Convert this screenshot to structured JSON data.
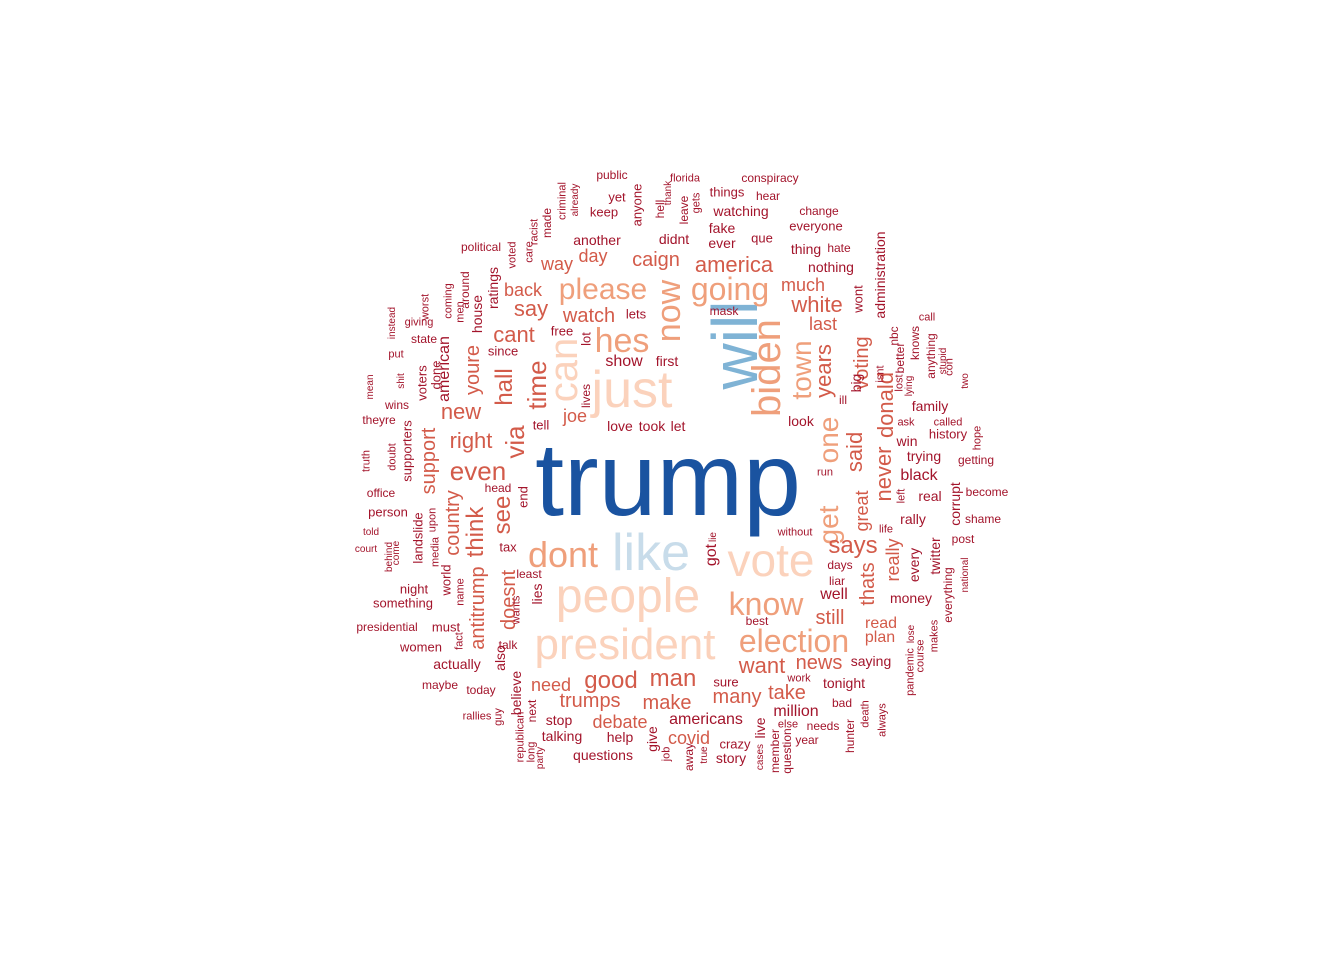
{
  "palette": {
    "tier1": "#1a53a0",
    "tier2": "#7fb3d5",
    "tier3": "#c8dcea",
    "tier4": "#fbd2bc",
    "tier5": "#ef9f7b",
    "tier6": "#d35b4a",
    "tier7": "#a3142b"
  },
  "words": [
    {
      "text": "trump",
      "tier": 1,
      "rot": 0
    },
    {
      "text": "will",
      "tier": 2,
      "rot": 1
    },
    {
      "text": "like",
      "tier": 3,
      "rot": 0
    },
    {
      "text": "people",
      "tier": 4,
      "rot": 0
    },
    {
      "text": "president",
      "tier": 4,
      "rot": 0
    },
    {
      "text": "just",
      "tier": 4,
      "rot": 0
    },
    {
      "text": "vote",
      "tier": 4,
      "rot": 0
    },
    {
      "text": "can",
      "tier": 4,
      "rot": 1
    },
    {
      "text": "biden",
      "tier": 5,
      "rot": 1
    },
    {
      "text": "now",
      "tier": 5,
      "rot": 1
    },
    {
      "text": "hes",
      "tier": 5,
      "rot": 0
    },
    {
      "text": "dont",
      "tier": 5,
      "rot": 0
    },
    {
      "text": "election",
      "tier": 5,
      "rot": 0
    },
    {
      "text": "know",
      "tier": 5,
      "rot": 0
    },
    {
      "text": "going",
      "tier": 5,
      "rot": 0
    },
    {
      "text": "please",
      "tier": 5,
      "rot": 0
    },
    {
      "text": "get",
      "tier": 5,
      "rot": 1
    },
    {
      "text": "one",
      "tier": 5,
      "rot": 1
    },
    {
      "text": "town",
      "tier": 5,
      "rot": 1
    },
    {
      "text": "time",
      "tier": 6,
      "rot": 1
    },
    {
      "text": "via",
      "tier": 6,
      "rot": 1
    },
    {
      "text": "hall",
      "tier": 6,
      "rot": 1
    },
    {
      "text": "see",
      "tier": 6,
      "rot": 1
    },
    {
      "text": "even",
      "tier": 6,
      "rot": 0
    },
    {
      "text": "think",
      "tier": 6,
      "rot": 1
    },
    {
      "text": "says",
      "tier": 6,
      "rot": 0
    },
    {
      "text": "good",
      "tier": 6,
      "rot": 0
    },
    {
      "text": "man",
      "tier": 6,
      "rot": 0
    },
    {
      "text": "want",
      "tier": 6,
      "rot": 0
    },
    {
      "text": "america",
      "tier": 6,
      "rot": 0
    },
    {
      "text": "white",
      "tier": 6,
      "rot": 0
    },
    {
      "text": "years",
      "tier": 6,
      "rot": 1
    },
    {
      "text": "said",
      "tier": 6,
      "rot": 1
    },
    {
      "text": "never",
      "tier": 6,
      "rot": 1
    },
    {
      "text": "donald",
      "tier": 6,
      "rot": 1
    },
    {
      "text": "right",
      "tier": 6,
      "rot": 0
    },
    {
      "text": "new",
      "tier": 6,
      "rot": 0
    },
    {
      "text": "youre",
      "tier": 6,
      "rot": 1
    },
    {
      "text": "say",
      "tier": 6,
      "rot": 0
    },
    {
      "text": "cant",
      "tier": 6,
      "rot": 0
    },
    {
      "text": "watch",
      "tier": 6,
      "rot": 0
    },
    {
      "text": "caign",
      "tier": 6,
      "rot": 0
    },
    {
      "text": "still",
      "tier": 6,
      "rot": 0
    },
    {
      "text": "news",
      "tier": 6,
      "rot": 0
    },
    {
      "text": "make",
      "tier": 6,
      "rot": 0
    },
    {
      "text": "trumps",
      "tier": 6,
      "rot": 0
    },
    {
      "text": "debate",
      "tier": 6,
      "rot": 0
    },
    {
      "text": "covid",
      "tier": 6,
      "rot": 0
    },
    {
      "text": "take",
      "tier": 6,
      "rot": 0
    },
    {
      "text": "many",
      "tier": 6,
      "rot": 0
    },
    {
      "text": "doesnt",
      "tier": 6,
      "rot": 1
    },
    {
      "text": "antitrump",
      "tier": 6,
      "rot": 1
    },
    {
      "text": "country",
      "tier": 6,
      "rot": 1
    },
    {
      "text": "support",
      "tier": 6,
      "rot": 1
    },
    {
      "text": "thats",
      "tier": 6,
      "rot": 1
    },
    {
      "text": "great",
      "tier": 6,
      "rot": 1
    },
    {
      "text": "really",
      "tier": 6,
      "rot": 1
    },
    {
      "text": "voting",
      "tier": 6,
      "rot": 1
    },
    {
      "text": "need",
      "tier": 6,
      "rot": 0
    },
    {
      "text": "back",
      "tier": 6,
      "rot": 0
    },
    {
      "text": "way",
      "tier": 6,
      "rot": 0
    },
    {
      "text": "day",
      "tier": 6,
      "rot": 0
    },
    {
      "text": "last",
      "tier": 6,
      "rot": 0
    },
    {
      "text": "much",
      "tier": 6,
      "rot": 0
    },
    {
      "text": "joe",
      "tier": 6,
      "rot": 0
    },
    {
      "text": "plan",
      "tier": 6,
      "rot": 0
    },
    {
      "text": "read",
      "tier": 6,
      "rot": 0
    },
    {
      "text": "well",
      "tier": 7,
      "rot": 0
    },
    {
      "text": "american",
      "tier": 7,
      "rot": 1
    },
    {
      "text": "ratings",
      "tier": 7,
      "rot": 1
    },
    {
      "text": "house",
      "tier": 7,
      "rot": 1
    },
    {
      "text": "since",
      "tier": 7,
      "rot": 0
    },
    {
      "text": "free",
      "tier": 7,
      "rot": 0
    },
    {
      "text": "lot",
      "tier": 7,
      "rot": 1
    },
    {
      "text": "show",
      "tier": 7,
      "rot": 0
    },
    {
      "text": "first",
      "tier": 7,
      "rot": 0
    },
    {
      "text": "mask",
      "tier": 7,
      "rot": 0
    },
    {
      "text": "lets",
      "tier": 7,
      "rot": 0
    },
    {
      "text": "tell",
      "tier": 7,
      "rot": 0
    },
    {
      "text": "lives",
      "tier": 7,
      "rot": 1
    },
    {
      "text": "love",
      "tier": 7,
      "rot": 0
    },
    {
      "text": "took",
      "tier": 7,
      "rot": 0
    },
    {
      "text": "let",
      "tier": 7,
      "rot": 0
    },
    {
      "text": "look",
      "tier": 7,
      "rot": 0
    },
    {
      "text": "ill",
      "tier": 7,
      "rot": 0
    },
    {
      "text": "big",
      "tier": 7,
      "rot": 1
    },
    {
      "text": "end",
      "tier": 7,
      "rot": 1
    },
    {
      "text": "head",
      "tier": 7,
      "rot": 0
    },
    {
      "text": "tax",
      "tier": 7,
      "rot": 0
    },
    {
      "text": "least",
      "tier": 7,
      "rot": 0
    },
    {
      "text": "lies",
      "tier": 7,
      "rot": 1
    },
    {
      "text": "wants",
      "tier": 7,
      "rot": 1
    },
    {
      "text": "talk",
      "tier": 7,
      "rot": 0
    },
    {
      "text": "also",
      "tier": 7,
      "rot": 1
    },
    {
      "text": "believe",
      "tier": 7,
      "rot": 1
    },
    {
      "text": "next",
      "tier": 7,
      "rot": 1
    },
    {
      "text": "republican",
      "tier": 7,
      "rot": 1
    },
    {
      "text": "long",
      "tier": 7,
      "rot": 1
    },
    {
      "text": "party",
      "tier": 7,
      "rot": 1
    },
    {
      "text": "guy",
      "tier": 7,
      "rot": 1
    },
    {
      "text": "stop",
      "tier": 7,
      "rot": 0
    },
    {
      "text": "talking",
      "tier": 7,
      "rot": 0
    },
    {
      "text": "questions",
      "tier": 7,
      "rot": 0
    },
    {
      "text": "help",
      "tier": 7,
      "rot": 0
    },
    {
      "text": "give",
      "tier": 7,
      "rot": 1
    },
    {
      "text": "job",
      "tier": 7,
      "rot": 1
    },
    {
      "text": "away",
      "tier": 7,
      "rot": 1
    },
    {
      "text": "true",
      "tier": 7,
      "rot": 1
    },
    {
      "text": "story",
      "tier": 7,
      "rot": 0
    },
    {
      "text": "crazy",
      "tier": 7,
      "rot": 0
    },
    {
      "text": "live",
      "tier": 7,
      "rot": 1
    },
    {
      "text": "cases",
      "tier": 7,
      "rot": 1
    },
    {
      "text": "member",
      "tier": 7,
      "rot": 1
    },
    {
      "text": "question",
      "tier": 7,
      "rot": 1
    },
    {
      "text": "else",
      "tier": 7,
      "rot": 0
    },
    {
      "text": "year",
      "tier": 7,
      "rot": 0
    },
    {
      "text": "needs",
      "tier": 7,
      "rot": 0
    },
    {
      "text": "hunter",
      "tier": 7,
      "rot": 1
    },
    {
      "text": "death",
      "tier": 7,
      "rot": 1
    },
    {
      "text": "always",
      "tier": 7,
      "rot": 1
    },
    {
      "text": "bad",
      "tier": 7,
      "rot": 0
    },
    {
      "text": "work",
      "tier": 7,
      "rot": 0
    },
    {
      "text": "tonight",
      "tier": 7,
      "rot": 0
    },
    {
      "text": "saying",
      "tier": 7,
      "rot": 0
    },
    {
      "text": "pandemic",
      "tier": 7,
      "rot": 1
    },
    {
      "text": "course",
      "tier": 7,
      "rot": 1
    },
    {
      "text": "makes",
      "tier": 7,
      "rot": 1
    },
    {
      "text": "lose",
      "tier": 7,
      "rot": 1
    },
    {
      "text": "everything",
      "tier": 7,
      "rot": 1
    },
    {
      "text": "money",
      "tier": 7,
      "rot": 0
    },
    {
      "text": "every",
      "tier": 7,
      "rot": 1
    },
    {
      "text": "twitter",
      "tier": 7,
      "rot": 1
    },
    {
      "text": "national",
      "tier": 7,
      "rot": 1
    },
    {
      "text": "post",
      "tier": 7,
      "rot": 0
    },
    {
      "text": "shame",
      "tier": 7,
      "rot": 0
    },
    {
      "text": "become",
      "tier": 7,
      "rot": 0
    },
    {
      "text": "corrupt",
      "tier": 7,
      "rot": 1
    },
    {
      "text": "real",
      "tier": 7,
      "rot": 0
    },
    {
      "text": "rally",
      "tier": 7,
      "rot": 0
    },
    {
      "text": "life",
      "tier": 7,
      "rot": 0
    },
    {
      "text": "left",
      "tier": 7,
      "rot": 1
    },
    {
      "text": "black",
      "tier": 7,
      "rot": 0
    },
    {
      "text": "trying",
      "tier": 7,
      "rot": 0
    },
    {
      "text": "win",
      "tier": 7,
      "rot": 0
    },
    {
      "text": "history",
      "tier": 7,
      "rot": 0
    },
    {
      "text": "family",
      "tier": 7,
      "rot": 0
    },
    {
      "text": "getting",
      "tier": 7,
      "rot": 0
    },
    {
      "text": "hope",
      "tier": 7,
      "rot": 1
    },
    {
      "text": "called",
      "tier": 7,
      "rot": 0
    },
    {
      "text": "ask",
      "tier": 7,
      "rot": 0
    },
    {
      "text": "lost",
      "tier": 7,
      "rot": 1
    },
    {
      "text": "lying",
      "tier": 7,
      "rot": 1
    },
    {
      "text": "better",
      "tier": 7,
      "rot": 1
    },
    {
      "text": "knows",
      "tier": 7,
      "rot": 1
    },
    {
      "text": "anything",
      "tier": 7,
      "rot": 1
    },
    {
      "text": "con",
      "tier": 7,
      "rot": 1
    },
    {
      "text": "stupid",
      "tier": 7,
      "rot": 1
    },
    {
      "text": "two",
      "tier": 7,
      "rot": 1
    },
    {
      "text": "call",
      "tier": 7,
      "rot": 0
    },
    {
      "text": "nbc",
      "tier": 7,
      "rot": 1
    },
    {
      "text": "isnt",
      "tier": 7,
      "rot": 1
    },
    {
      "text": "administration",
      "tier": 7,
      "rot": 1
    },
    {
      "text": "wont",
      "tier": 7,
      "rot": 1
    },
    {
      "text": "nothing",
      "tier": 7,
      "rot": 0
    },
    {
      "text": "thing",
      "tier": 7,
      "rot": 0
    },
    {
      "text": "hate",
      "tier": 7,
      "rot": 0
    },
    {
      "text": "everyone",
      "tier": 7,
      "rot": 0
    },
    {
      "text": "change",
      "tier": 7,
      "rot": 0
    },
    {
      "text": "que",
      "tier": 7,
      "rot": 0
    },
    {
      "text": "ever",
      "tier": 7,
      "rot": 0
    },
    {
      "text": "fake",
      "tier": 7,
      "rot": 0
    },
    {
      "text": "watching",
      "tier": 7,
      "rot": 0
    },
    {
      "text": "things",
      "tier": 7,
      "rot": 0
    },
    {
      "text": "hear",
      "tier": 7,
      "rot": 0
    },
    {
      "text": "conspiracy",
      "tier": 7,
      "rot": 0
    },
    {
      "text": "florida",
      "tier": 7,
      "rot": 0
    },
    {
      "text": "leave",
      "tier": 7,
      "rot": 1
    },
    {
      "text": "gets",
      "tier": 7,
      "rot": 1
    },
    {
      "text": "didnt",
      "tier": 7,
      "rot": 0
    },
    {
      "text": "hell",
      "tier": 7,
      "rot": 1
    },
    {
      "text": "thank",
      "tier": 7,
      "rot": 1
    },
    {
      "text": "public",
      "tier": 7,
      "rot": 0
    },
    {
      "text": "yet",
      "tier": 7,
      "rot": 0
    },
    {
      "text": "keep",
      "tier": 7,
      "rot": 0
    },
    {
      "text": "anyone",
      "tier": 7,
      "rot": 1
    },
    {
      "text": "another",
      "tier": 7,
      "rot": 0
    },
    {
      "text": "criminal",
      "tier": 7,
      "rot": 1
    },
    {
      "text": "already",
      "tier": 7,
      "rot": 1
    },
    {
      "text": "made",
      "tier": 7,
      "rot": 1
    },
    {
      "text": "racist",
      "tier": 7,
      "rot": 1
    },
    {
      "text": "care",
      "tier": 7,
      "rot": 1
    },
    {
      "text": "voted",
      "tier": 7,
      "rot": 1
    },
    {
      "text": "political",
      "tier": 7,
      "rot": 0
    },
    {
      "text": "around",
      "tier": 7,
      "rot": 1
    },
    {
      "text": "men",
      "tier": 7,
      "rot": 1
    },
    {
      "text": "coming",
      "tier": 7,
      "rot": 1
    },
    {
      "text": "worst",
      "tier": 7,
      "rot": 1
    },
    {
      "text": "giving",
      "tier": 7,
      "rot": 0
    },
    {
      "text": "instead",
      "tier": 7,
      "rot": 1
    },
    {
      "text": "state",
      "tier": 7,
      "rot": 0
    },
    {
      "text": "put",
      "tier": 7,
      "rot": 0
    },
    {
      "text": "shit",
      "tier": 7,
      "rot": 1
    },
    {
      "text": "mean",
      "tier": 7,
      "rot": 1
    },
    {
      "text": "done",
      "tier": 7,
      "rot": 1
    },
    {
      "text": "voters",
      "tier": 7,
      "rot": 1
    },
    {
      "text": "wins",
      "tier": 7,
      "rot": 0
    },
    {
      "text": "theyre",
      "tier": 7,
      "rot": 0
    },
    {
      "text": "supporters",
      "tier": 7,
      "rot": 1
    },
    {
      "text": "doubt",
      "tier": 7,
      "rot": 1
    },
    {
      "text": "truth",
      "tier": 7,
      "rot": 1
    },
    {
      "text": "office",
      "tier": 7,
      "rot": 0
    },
    {
      "text": "person",
      "tier": 7,
      "rot": 0
    },
    {
      "text": "upon",
      "tier": 7,
      "rot": 1
    },
    {
      "text": "landslide",
      "tier": 7,
      "rot": 1
    },
    {
      "text": "media",
      "tier": 7,
      "rot": 1
    },
    {
      "text": "told",
      "tier": 7,
      "rot": 0
    },
    {
      "text": "court",
      "tier": 7,
      "rot": 0
    },
    {
      "text": "come",
      "tier": 7,
      "rot": 1
    },
    {
      "text": "behind",
      "tier": 7,
      "rot": 1
    },
    {
      "text": "night",
      "tier": 7,
      "rot": 0
    },
    {
      "text": "world",
      "tier": 7,
      "rot": 1
    },
    {
      "text": "name",
      "tier": 7,
      "rot": 1
    },
    {
      "text": "something",
      "tier": 7,
      "rot": 0
    },
    {
      "text": "presidential",
      "tier": 7,
      "rot": 0
    },
    {
      "text": "must",
      "tier": 7,
      "rot": 0
    },
    {
      "text": "fact",
      "tier": 7,
      "rot": 1
    },
    {
      "text": "women",
      "tier": 7,
      "rot": 0
    },
    {
      "text": "actually",
      "tier": 7,
      "rot": 0
    },
    {
      "text": "maybe",
      "tier": 7,
      "rot": 0
    },
    {
      "text": "today",
      "tier": 7,
      "rot": 0
    },
    {
      "text": "rallies",
      "tier": 7,
      "rot": 0
    },
    {
      "text": "americans",
      "tier": 7,
      "rot": 0
    },
    {
      "text": "million",
      "tier": 7,
      "rot": 0
    },
    {
      "text": "sure",
      "tier": 7,
      "rot": 0
    },
    {
      "text": "got",
      "tier": 7,
      "rot": 1
    },
    {
      "text": "lie",
      "tier": 7,
      "rot": 1
    },
    {
      "text": "without",
      "tier": 7,
      "rot": 0
    },
    {
      "text": "best",
      "tier": 7,
      "rot": 0
    },
    {
      "text": "days",
      "tier": 7,
      "rot": 0
    },
    {
      "text": "liar",
      "tier": 7,
      "rot": 0
    },
    {
      "text": "run",
      "tier": 7,
      "rot": 0
    }
  ]
}
